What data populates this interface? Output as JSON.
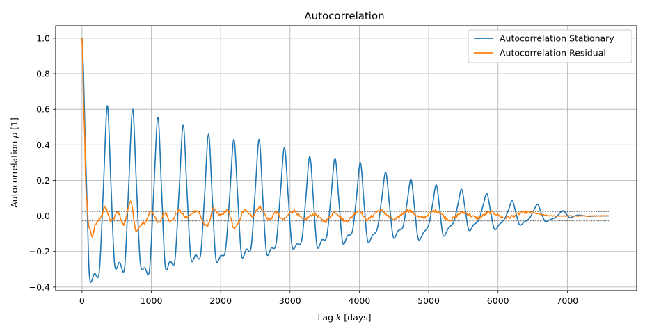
{
  "chart_data": {
    "type": "line",
    "title": "Autocorrelation",
    "xlabel": "Lag k [days]",
    "ylabel": "Autocorrelation ρ [1]",
    "xlim": [
      -380,
      8000
    ],
    "ylim": [
      -0.42,
      1.07
    ],
    "xticks": [
      0,
      1000,
      2000,
      3000,
      4000,
      5000,
      6000,
      7000
    ],
    "xtick_labels": [
      "0",
      "1000",
      "2000",
      "3000",
      "4000",
      "5000",
      "6000",
      "7000"
    ],
    "yticks": [
      -0.4,
      -0.2,
      0.0,
      0.2,
      0.4,
      0.6,
      0.8,
      1.0
    ],
    "ytick_labels": [
      "−0.4",
      "−0.2",
      "0.0",
      "0.2",
      "0.4",
      "0.6",
      "0.8",
      "1.0"
    ],
    "grid": true,
    "legend_position": "upper-right",
    "confidence_band": [
      -0.025,
      0.025
    ],
    "max_lag": 7600,
    "series": [
      {
        "name": "Autocorrelation Stationary",
        "color": "#1f77b4",
        "peaks": [
          [
            365,
            0.62
          ],
          [
            730,
            0.6
          ],
          [
            1095,
            0.555
          ],
          [
            1460,
            0.51
          ],
          [
            1825,
            0.46
          ],
          [
            2190,
            0.43
          ],
          [
            2555,
            0.43
          ],
          [
            2920,
            0.385
          ],
          [
            3285,
            0.335
          ],
          [
            3650,
            0.325
          ],
          [
            4015,
            0.3
          ],
          [
            4380,
            0.245
          ],
          [
            4745,
            0.205
          ],
          [
            5110,
            0.175
          ],
          [
            5475,
            0.15
          ],
          [
            5840,
            0.125
          ],
          [
            6205,
            0.085
          ],
          [
            6570,
            0.065
          ],
          [
            6935,
            0.03
          ]
        ],
        "troughs": [
          [
            110,
            -0.35
          ],
          [
            250,
            -0.31
          ],
          [
            470,
            -0.27
          ],
          [
            615,
            -0.29
          ],
          [
            840,
            -0.26
          ],
          [
            975,
            -0.3
          ],
          [
            1200,
            -0.28
          ],
          [
            1340,
            -0.25
          ],
          [
            1570,
            -0.235
          ],
          [
            1710,
            -0.22
          ],
          [
            1930,
            -0.24
          ],
          [
            2070,
            -0.19
          ],
          [
            2300,
            -0.22
          ],
          [
            2440,
            -0.175
          ],
          [
            2660,
            -0.205
          ],
          [
            2800,
            -0.155
          ],
          [
            3030,
            -0.17
          ],
          [
            3170,
            -0.135
          ],
          [
            3390,
            -0.17
          ],
          [
            3530,
            -0.115
          ],
          [
            3760,
            -0.15
          ],
          [
            3900,
            -0.085
          ],
          [
            4120,
            -0.14
          ],
          [
            4260,
            -0.07
          ],
          [
            4490,
            -0.12
          ],
          [
            4630,
            -0.06
          ],
          [
            4850,
            -0.13
          ],
          [
            5000,
            -0.05
          ],
          [
            5210,
            -0.11
          ],
          [
            5360,
            -0.035
          ],
          [
            5580,
            -0.08
          ],
          [
            5720,
            -0.025
          ],
          [
            5950,
            -0.075
          ],
          [
            6090,
            -0.02
          ],
          [
            6310,
            -0.05
          ],
          [
            6450,
            -0.015
          ],
          [
            6680,
            -0.03
          ],
          [
            6820,
            -0.01
          ],
          [
            7040,
            -0.01
          ]
        ]
      },
      {
        "name": "Autocorrelation Residual",
        "color": "#ff7f0e",
        "anchors": [
          [
            0,
            1.0
          ],
          [
            30,
            0.55
          ],
          [
            60,
            0.12
          ],
          [
            100,
            -0.06
          ],
          [
            150,
            -0.12
          ],
          [
            200,
            -0.04
          ],
          [
            270,
            -0.01
          ],
          [
            330,
            0.05
          ],
          [
            420,
            -0.03
          ],
          [
            520,
            0.02
          ],
          [
            600,
            -0.05
          ],
          [
            700,
            0.08
          ],
          [
            780,
            -0.08
          ],
          [
            900,
            -0.04
          ],
          [
            1000,
            0.03
          ],
          [
            1100,
            -0.04
          ],
          [
            1200,
            0.02
          ],
          [
            1280,
            -0.03
          ],
          [
            1400,
            0.03
          ],
          [
            1500,
            -0.01
          ],
          [
            1650,
            0.03
          ],
          [
            1800,
            -0.06
          ],
          [
            1900,
            0.04
          ],
          [
            2000,
            0.0
          ],
          [
            2100,
            0.03
          ],
          [
            2200,
            -0.07
          ],
          [
            2350,
            0.03
          ],
          [
            2450,
            0.0
          ],
          [
            2560,
            0.05
          ],
          [
            2700,
            -0.02
          ],
          [
            2800,
            0.02
          ],
          [
            2900,
            -0.02
          ],
          [
            3050,
            0.03
          ],
          [
            3200,
            -0.02
          ],
          [
            3350,
            0.01
          ],
          [
            3500,
            -0.03
          ],
          [
            3650,
            0.02
          ],
          [
            3800,
            -0.03
          ],
          [
            4000,
            0.03
          ],
          [
            4100,
            -0.02
          ],
          [
            4300,
            0.03
          ],
          [
            4500,
            -0.02
          ],
          [
            4700,
            0.03
          ],
          [
            4900,
            -0.01
          ],
          [
            5100,
            0.03
          ],
          [
            5300,
            -0.02
          ],
          [
            5500,
            0.02
          ],
          [
            5700,
            -0.01
          ],
          [
            5900,
            0.02
          ],
          [
            6100,
            -0.01
          ],
          [
            6400,
            0.02
          ],
          [
            6800,
            0.0
          ],
          [
            7200,
            0.0
          ],
          [
            7600,
            0.0
          ]
        ]
      }
    ]
  }
}
